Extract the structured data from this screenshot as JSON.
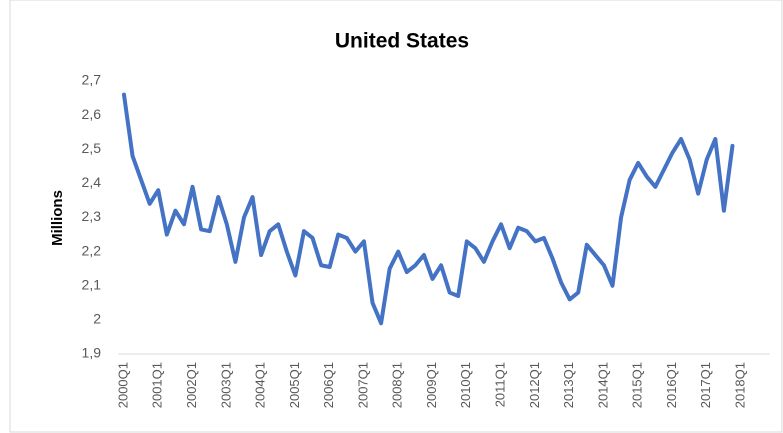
{
  "chart_data": {
    "type": "line",
    "title": "United States",
    "y_label": "Millions",
    "categories": [
      "2000Q1",
      null,
      null,
      null,
      "2001Q1",
      null,
      null,
      null,
      "2002Q1",
      null,
      null,
      null,
      "2003Q1",
      null,
      null,
      null,
      "2004Q1",
      null,
      null,
      null,
      "2005Q1",
      null,
      null,
      null,
      "2006Q1",
      null,
      null,
      null,
      "2007Q1",
      null,
      null,
      null,
      "2008Q1",
      null,
      null,
      null,
      "2009Q1",
      null,
      null,
      null,
      "2010Q1",
      null,
      null,
      null,
      "2011Q1",
      null,
      null,
      null,
      "2012Q1",
      null,
      null,
      null,
      "2013Q1",
      null,
      null,
      null,
      "2014Q1",
      null,
      null,
      null,
      "2015Q1",
      null,
      null,
      null,
      "2016Q1",
      null,
      null,
      null,
      "2017Q1",
      null,
      null,
      null,
      "2018Q1"
    ],
    "values": [
      2.66,
      2.48,
      2.41,
      2.34,
      2.38,
      2.25,
      2.32,
      2.28,
      2.39,
      2.265,
      2.26,
      2.36,
      2.28,
      2.17,
      2.3,
      2.36,
      2.19,
      2.26,
      2.28,
      2.2,
      2.13,
      2.26,
      2.24,
      2.16,
      2.155,
      2.25,
      2.24,
      2.2,
      2.23,
      2.05,
      1.99,
      2.15,
      2.2,
      2.14,
      2.16,
      2.19,
      2.12,
      2.16,
      2.08,
      2.07,
      2.23,
      2.21,
      2.17,
      2.23,
      2.28,
      2.21,
      2.27,
      2.26,
      2.23,
      2.24,
      2.18,
      2.11,
      2.06,
      2.08,
      2.22,
      2.19,
      2.16,
      2.1,
      2.3,
      2.41,
      2.46,
      2.42,
      2.39,
      2.44,
      2.49,
      2.53,
      2.47,
      2.37,
      2.47,
      2.53,
      2.32,
      2.51,
      null
    ],
    "color": "#4472c4",
    "ylim": [
      1.9,
      2.7
    ],
    "yticks": [
      {
        "value": 1.9,
        "label": "1,9"
      },
      2,
      {
        "value": 2.1,
        "label": "2,1"
      },
      {
        "value": 2.2,
        "label": "2,2"
      },
      {
        "value": 2.3,
        "label": "2,3"
      },
      {
        "value": 2.4,
        "label": "2,4"
      },
      {
        "value": 2.5,
        "label": "2,5"
      },
      {
        "value": 2.6,
        "label": "2,6"
      },
      {
        "value": 2.7,
        "label": "2,7"
      }
    ],
    "grid": false
  }
}
